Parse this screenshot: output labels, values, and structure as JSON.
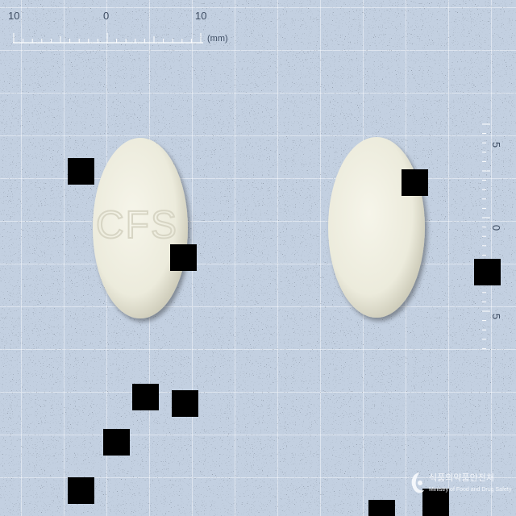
{
  "ruler_top": {
    "tick_labels": [
      "10",
      "0",
      "10"
    ],
    "unit": "(mm)"
  },
  "ruler_side": {
    "tick_labels": [
      "5",
      "0",
      "5"
    ]
  },
  "tablets": {
    "left": {
      "imprint": "CFS"
    },
    "right": {
      "imprint": ""
    }
  },
  "watermark": {
    "korean": "식품의약품안전처",
    "english": "Ministry of Food and Drug Safety"
  },
  "colors": {
    "background": "#c3d0e1",
    "tablet": "#ecebdc",
    "redaction": "#000000"
  }
}
